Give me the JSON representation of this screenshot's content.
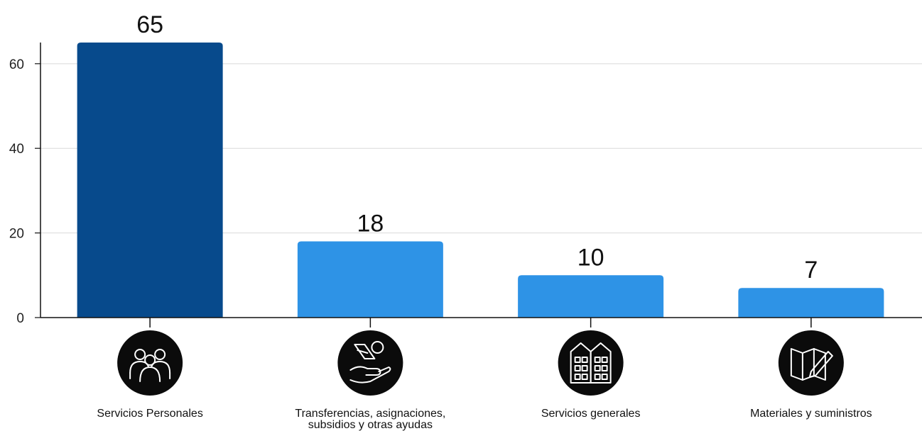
{
  "chart_data": {
    "type": "bar",
    "categories": [
      "Servicios Personales",
      "Transferencias, asignaciones, subsidios y otras ayudas",
      "Servicios generales",
      "Materiales y suministros"
    ],
    "category_lines": [
      [
        "Servicios Personales"
      ],
      [
        "Transferencias, asignaciones,",
        "subsidios y otras ayudas"
      ],
      [
        "Servicios generales"
      ],
      [
        "Materiales y suministros"
      ]
    ],
    "values": [
      65,
      18,
      10,
      7
    ],
    "data_labels": [
      "65",
      "18",
      "10",
      "7"
    ],
    "bar_colors": [
      "#074a8c",
      "#2e93e6",
      "#2e93e6",
      "#2e93e6"
    ],
    "icons": [
      "people-group-icon",
      "money-hand-icon",
      "buildings-icon",
      "map-pencil-icon"
    ],
    "yticks": [
      0,
      20,
      40,
      60
    ],
    "ylim": [
      0,
      65
    ],
    "grid": true,
    "title": "",
    "xlabel": "",
    "ylabel": ""
  }
}
